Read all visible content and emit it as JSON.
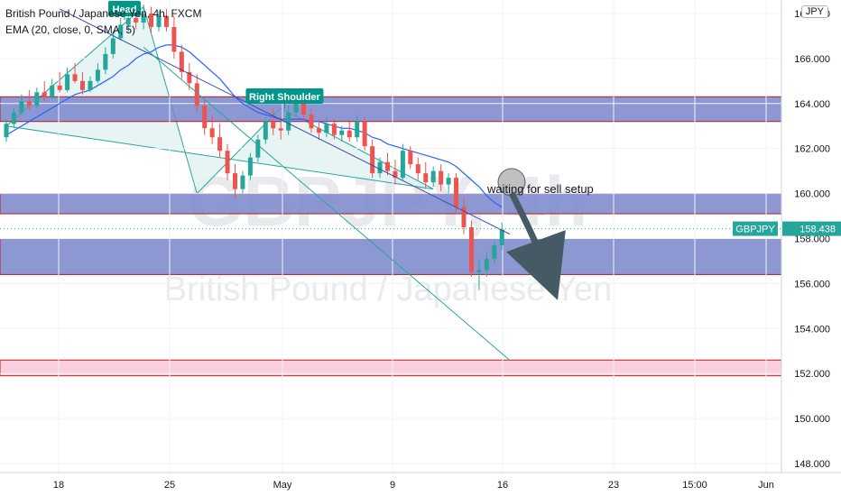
{
  "header": {
    "symbol_line": "British Pound / Japanese Yen, 4h, FXCM",
    "indicator_line": "EMA (20, close, 0, SMA, 5)"
  },
  "watermark": {
    "big": "GBPJPY, 4h",
    "small": "British Pound / Japanese Yen"
  },
  "currency_badge": "JPY",
  "last_price": {
    "symbol": "GBPJPY",
    "value": "158.438",
    "color": "#26a69a"
  },
  "annotations": {
    "head": "Head",
    "right_shoulder": "Right Shoulder",
    "note": "waiting for sell setup"
  },
  "colors": {
    "up": "#26a69a",
    "down": "#ef5350",
    "ema": "#2962ff",
    "zone_fill": "#7986cb",
    "zone_border": "#b71c1c",
    "pink_zone": "#f8bbd0",
    "trendline": "#3949ab",
    "lower_line": "#26a69a",
    "hs_fill": "#e0f2f1"
  },
  "chart_data": {
    "type": "candlestick",
    "ylim": [
      147.6,
      168.6
    ],
    "y_ticks": [
      "148.000",
      "150.000",
      "152.000",
      "154.000",
      "156.000",
      "158.000",
      "160.000",
      "162.000",
      "164.000",
      "166.000",
      "168.000"
    ],
    "x_ticks": [
      "18",
      "25",
      "May",
      "9",
      "16",
      "23",
      "15:00",
      "Jun"
    ],
    "zones": [
      {
        "low": 163.2,
        "high": 164.3,
        "style": "blue"
      },
      {
        "low": 159.1,
        "high": 160.0,
        "style": "blue"
      },
      {
        "low": 156.4,
        "high": 158.0,
        "style": "blue"
      },
      {
        "low": 151.9,
        "high": 152.6,
        "style": "pink"
      }
    ],
    "candles": [
      {
        "o": 162.5,
        "h": 163.3,
        "l": 162.3,
        "c": 163.1
      },
      {
        "o": 163.1,
        "h": 163.8,
        "l": 162.9,
        "c": 163.6
      },
      {
        "o": 163.6,
        "h": 164.4,
        "l": 163.5,
        "c": 164.1
      },
      {
        "o": 164.1,
        "h": 164.6,
        "l": 163.7,
        "c": 163.9
      },
      {
        "o": 163.9,
        "h": 164.7,
        "l": 163.8,
        "c": 164.5
      },
      {
        "o": 164.5,
        "h": 165.0,
        "l": 164.1,
        "c": 164.3
      },
      {
        "o": 164.3,
        "h": 165.1,
        "l": 164.2,
        "c": 164.8
      },
      {
        "o": 164.8,
        "h": 165.4,
        "l": 164.5,
        "c": 164.6
      },
      {
        "o": 164.6,
        "h": 165.6,
        "l": 164.5,
        "c": 165.3
      },
      {
        "o": 165.3,
        "h": 165.8,
        "l": 164.9,
        "c": 165.0
      },
      {
        "o": 165.0,
        "h": 165.4,
        "l": 164.4,
        "c": 164.6
      },
      {
        "o": 164.6,
        "h": 165.2,
        "l": 164.5,
        "c": 165.0
      },
      {
        "o": 165.0,
        "h": 165.8,
        "l": 164.9,
        "c": 165.5
      },
      {
        "o": 165.5,
        "h": 166.5,
        "l": 165.3,
        "c": 166.2
      },
      {
        "o": 166.2,
        "h": 167.2,
        "l": 166.0,
        "c": 166.9
      },
      {
        "o": 166.9,
        "h": 167.8,
        "l": 166.8,
        "c": 167.5
      },
      {
        "o": 167.5,
        "h": 168.2,
        "l": 167.2,
        "c": 167.8
      },
      {
        "o": 167.8,
        "h": 168.5,
        "l": 167.3,
        "c": 167.6
      },
      {
        "o": 167.6,
        "h": 168.4,
        "l": 167.3,
        "c": 168.0
      },
      {
        "o": 168.0,
        "h": 168.3,
        "l": 167.1,
        "c": 167.4
      },
      {
        "o": 167.4,
        "h": 168.1,
        "l": 167.2,
        "c": 167.9
      },
      {
        "o": 167.9,
        "h": 168.2,
        "l": 167.2,
        "c": 167.4
      },
      {
        "o": 167.4,
        "h": 167.9,
        "l": 166.0,
        "c": 166.3
      },
      {
        "o": 166.3,
        "h": 166.6,
        "l": 165.1,
        "c": 165.4
      },
      {
        "o": 165.4,
        "h": 165.8,
        "l": 164.6,
        "c": 164.9
      },
      {
        "o": 164.9,
        "h": 165.3,
        "l": 163.6,
        "c": 163.9
      },
      {
        "o": 163.9,
        "h": 164.2,
        "l": 162.6,
        "c": 162.9
      },
      {
        "o": 162.9,
        "h": 163.5,
        "l": 162.2,
        "c": 162.5
      },
      {
        "o": 162.5,
        "h": 163.1,
        "l": 161.6,
        "c": 161.9
      },
      {
        "o": 161.9,
        "h": 162.2,
        "l": 160.6,
        "c": 160.9
      },
      {
        "o": 160.9,
        "h": 161.3,
        "l": 159.8,
        "c": 160.2
      },
      {
        "o": 160.2,
        "h": 161.0,
        "l": 160.0,
        "c": 160.8
      },
      {
        "o": 160.8,
        "h": 161.8,
        "l": 160.6,
        "c": 161.6
      },
      {
        "o": 161.6,
        "h": 162.6,
        "l": 161.4,
        "c": 162.4
      },
      {
        "o": 162.4,
        "h": 163.4,
        "l": 162.2,
        "c": 163.2
      },
      {
        "o": 163.2,
        "h": 163.8,
        "l": 162.6,
        "c": 162.9
      },
      {
        "o": 162.9,
        "h": 163.4,
        "l": 162.4,
        "c": 162.8
      },
      {
        "o": 162.8,
        "h": 163.9,
        "l": 162.6,
        "c": 163.6
      },
      {
        "o": 163.6,
        "h": 164.3,
        "l": 163.4,
        "c": 164.0
      },
      {
        "o": 164.0,
        "h": 164.2,
        "l": 163.2,
        "c": 163.5
      },
      {
        "o": 163.5,
        "h": 163.8,
        "l": 162.7,
        "c": 162.9
      },
      {
        "o": 162.9,
        "h": 163.3,
        "l": 162.4,
        "c": 162.7
      },
      {
        "o": 162.7,
        "h": 163.4,
        "l": 162.5,
        "c": 163.1
      },
      {
        "o": 163.1,
        "h": 163.3,
        "l": 162.4,
        "c": 162.6
      },
      {
        "o": 162.6,
        "h": 163.0,
        "l": 162.3,
        "c": 162.8
      },
      {
        "o": 162.8,
        "h": 163.2,
        "l": 162.3,
        "c": 162.5
      },
      {
        "o": 162.5,
        "h": 163.5,
        "l": 162.3,
        "c": 163.2
      },
      {
        "o": 163.2,
        "h": 163.4,
        "l": 161.9,
        "c": 162.1
      },
      {
        "o": 162.1,
        "h": 162.4,
        "l": 160.7,
        "c": 160.9
      },
      {
        "o": 160.9,
        "h": 161.6,
        "l": 160.7,
        "c": 161.4
      },
      {
        "o": 161.4,
        "h": 161.8,
        "l": 160.8,
        "c": 161.0
      },
      {
        "o": 161.0,
        "h": 161.5,
        "l": 160.4,
        "c": 160.7
      },
      {
        "o": 160.7,
        "h": 162.2,
        "l": 160.6,
        "c": 161.9
      },
      {
        "o": 161.9,
        "h": 162.1,
        "l": 161.1,
        "c": 161.3
      },
      {
        "o": 161.3,
        "h": 161.6,
        "l": 160.6,
        "c": 160.9
      },
      {
        "o": 160.9,
        "h": 161.4,
        "l": 160.2,
        "c": 160.5
      },
      {
        "o": 160.5,
        "h": 161.2,
        "l": 160.3,
        "c": 161.0
      },
      {
        "o": 161.0,
        "h": 161.3,
        "l": 160.1,
        "c": 160.4
      },
      {
        "o": 160.4,
        "h": 160.9,
        "l": 160.0,
        "c": 160.7
      },
      {
        "o": 160.7,
        "h": 160.9,
        "l": 159.1,
        "c": 159.4
      },
      {
        "o": 159.4,
        "h": 159.8,
        "l": 158.2,
        "c": 158.5
      },
      {
        "o": 158.5,
        "h": 158.8,
        "l": 156.3,
        "c": 156.5
      },
      {
        "o": 156.5,
        "h": 157.1,
        "l": 155.7,
        "c": 156.6
      },
      {
        "o": 156.6,
        "h": 157.4,
        "l": 156.3,
        "c": 157.1
      },
      {
        "o": 157.1,
        "h": 157.9,
        "l": 156.9,
        "c": 157.7
      },
      {
        "o": 157.7,
        "h": 158.7,
        "l": 157.5,
        "c": 158.4
      }
    ],
    "ema": [
      162.6,
      162.8,
      163.0,
      163.2,
      163.4,
      163.6,
      163.8,
      164.0,
      164.2,
      164.4,
      164.5,
      164.6,
      164.8,
      165.0,
      165.2,
      165.5,
      165.7,
      166.0,
      166.2,
      166.3,
      166.5,
      166.6,
      166.6,
      166.5,
      166.3,
      166.0,
      165.7,
      165.4,
      165.1,
      164.7,
      164.3,
      164.0,
      163.8,
      163.6,
      163.5,
      163.4,
      163.3,
      163.3,
      163.3,
      163.3,
      163.2,
      163.2,
      163.1,
      163.0,
      162.9,
      162.9,
      162.8,
      162.7,
      162.5,
      162.4,
      162.2,
      162.1,
      162.0,
      161.9,
      161.8,
      161.7,
      161.6,
      161.5,
      161.4,
      161.2,
      160.9,
      160.6,
      160.3,
      159.9,
      159.6,
      159.4
    ],
    "lines": [
      {
        "name": "neckline-upper",
        "points": [
          [
            7,
            168.2
          ],
          [
            66,
            158.2
          ]
        ]
      },
      {
        "name": "neckline-lower",
        "points": [
          [
            18,
            166.5
          ],
          [
            66,
            152.6
          ]
        ]
      }
    ]
  }
}
